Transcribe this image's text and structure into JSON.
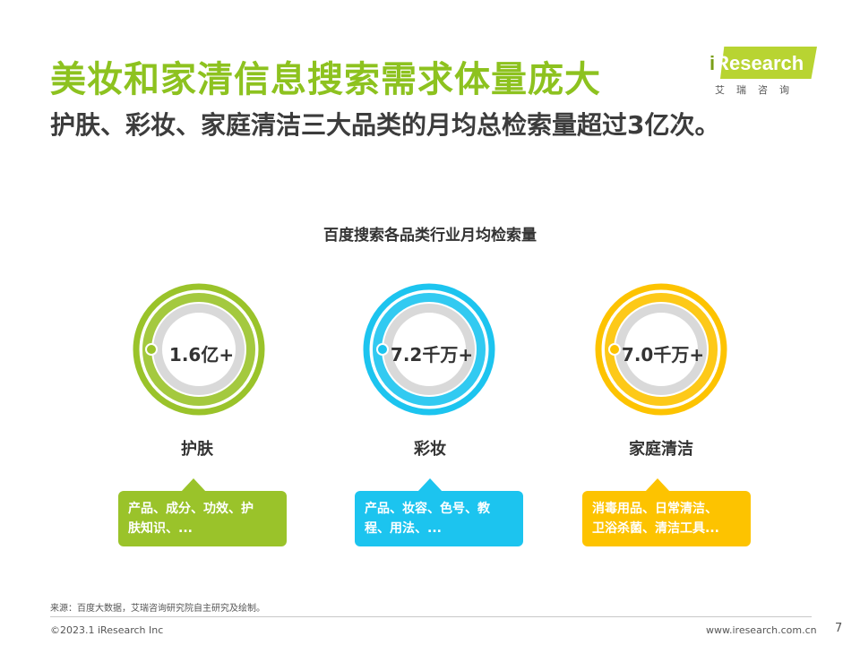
{
  "header": {
    "title": "美妆和家清信息搜索需求体量庞大",
    "subtitle": "护肤、彩妆、家庭清洁三大品类的月均总检索量超过3亿次。"
  },
  "logo": {
    "brand_i": "i",
    "brand_rest": "Research",
    "chinese": "艾瑞咨询",
    "color": "#b8d432"
  },
  "chart": {
    "title": "百度搜索各品类行业月均检索量",
    "items": [
      {
        "value": "1.6亿+",
        "label": "护肤",
        "color": "#9ac32a",
        "desc_line1": "产品、成分、功效、护",
        "desc_line2": "肤知识、..."
      },
      {
        "value": "7.2千万+",
        "label": "彩妆",
        "color": "#1cc4ef",
        "desc_line1": "产品、妆容、色号、教",
        "desc_line2": "程、用法、..."
      },
      {
        "value": "7.0千万+",
        "label": "家庭清洁",
        "color": "#fdc300",
        "desc_line1": "消毒用品、日常清洁、",
        "desc_line2": "卫浴杀菌、清洁工具..."
      }
    ]
  },
  "footer": {
    "source": "来源：百度大数据，艾瑞咨询研究院自主研究及绘制。",
    "copyright": "©2023.1 iResearch Inc",
    "website": "www.iresearch.com.cn",
    "page": "7"
  }
}
